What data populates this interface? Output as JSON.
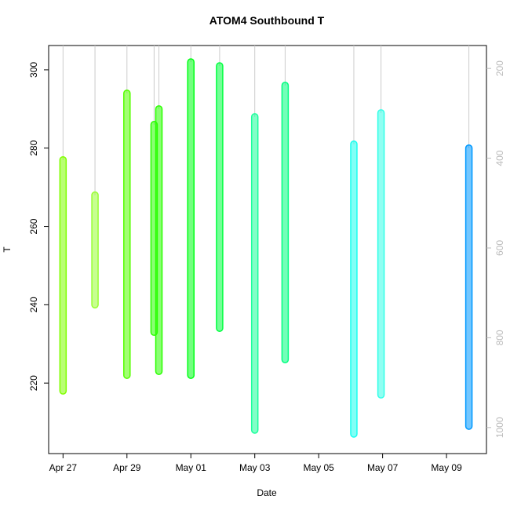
{
  "chart_data": {
    "type": "range",
    "title": "ATOM4 Southbound T",
    "xlabel": "Date",
    "ylabel": "T",
    "xlim": [
      -0.45,
      13.25
    ],
    "xticks": [
      {
        "value": 0,
        "label": "Apr 27"
      },
      {
        "value": 2,
        "label": "Apr 29"
      },
      {
        "value": 4,
        "label": "May 01"
      },
      {
        "value": 6,
        "label": "May 03"
      },
      {
        "value": 8,
        "label": "May 05"
      },
      {
        "value": 10,
        "label": "May 07"
      },
      {
        "value": 12,
        "label": "May 09"
      }
    ],
    "ylim": [
      202,
      306.2
    ],
    "yticks": [
      220,
      240,
      260,
      280,
      300
    ],
    "y2lim": [
      1058,
      149
    ],
    "y2ticks": [
      200,
      400,
      600,
      800,
      1000
    ],
    "y2color": "#bbbbbb",
    "series": [
      {
        "x": 0.0,
        "low": 218,
        "high": 277,
        "color": "#80ff00"
      },
      {
        "x": 1.0,
        "low": 240,
        "high": 268,
        "color": "#99ff33"
      },
      {
        "x": 2.0,
        "low": 222,
        "high": 294,
        "color": "#55ff00"
      },
      {
        "x": 2.85,
        "low": 233,
        "high": 286,
        "color": "#2aff00"
      },
      {
        "x": 3.0,
        "low": 223,
        "high": 290,
        "color": "#2aff00"
      },
      {
        "x": 4.0,
        "low": 222,
        "high": 302,
        "color": "#00ff15"
      },
      {
        "x": 4.9,
        "low": 234,
        "high": 301,
        "color": "#00ff40"
      },
      {
        "x": 6.0,
        "low": 208,
        "high": 288,
        "color": "#1aff9b"
      },
      {
        "x": 6.95,
        "low": 226,
        "high": 296,
        "color": "#00ff80"
      },
      {
        "x": 9.1,
        "low": 207,
        "high": 281,
        "color": "#1affee"
      },
      {
        "x": 9.95,
        "low": 217,
        "high": 289,
        "color": "#33ffe8"
      },
      {
        "x": 12.7,
        "low": 209,
        "high": 280,
        "color": "#0099ff"
      }
    ]
  }
}
